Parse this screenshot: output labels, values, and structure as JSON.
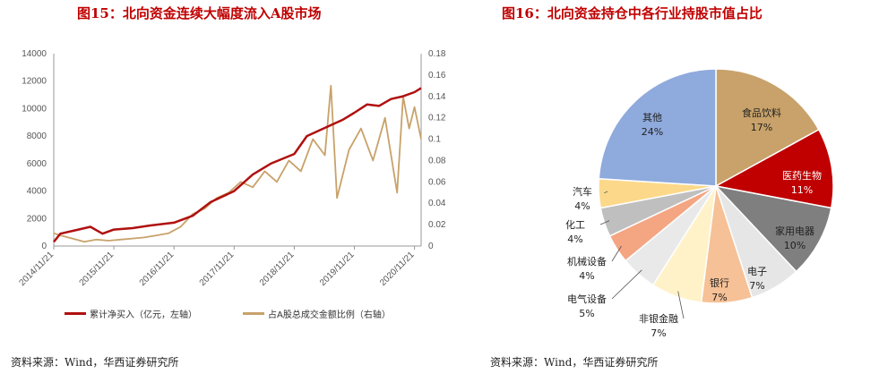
{
  "left_panel": {
    "title": "图15：北向资金连续大幅度流入A股市场",
    "source": "资料来源：Wind，华西证券研究所",
    "legend": {
      "red": "累计净买入（亿元，左轴）",
      "gold": "占A股总成交金额比例（右轴）"
    }
  },
  "right_panel": {
    "title": "图16：北向资金持仓中各行业持股市值占比",
    "source": "资料来源：Wind，华西证券研究所"
  },
  "colors": {
    "title": "#c00000",
    "red_line": "#b01010",
    "gold_line": "#c8a26a"
  },
  "chart_data": [
    {
      "type": "line",
      "title": "北向资金连续大幅度流入A股市场",
      "x_tick_labels": [
        "2014/11/21",
        "2015/11/21",
        "2016/11/21",
        "2017/11/21",
        "2018/11/21",
        "2019/11/21",
        "2020/11/21"
      ],
      "y_left": {
        "label": "",
        "ticks": [
          0,
          2000,
          4000,
          6000,
          8000,
          10000,
          12000,
          14000
        ],
        "lim": [
          0,
          14000
        ]
      },
      "y_right": {
        "label": "",
        "ticks": [
          0,
          0.02,
          0.04,
          0.06,
          0.08,
          0.1,
          0.12,
          0.14,
          0.16,
          0.18
        ],
        "lim": [
          0,
          0.18
        ]
      },
      "series": [
        {
          "name": "累计净买入（亿元，左轴）",
          "axis": "left",
          "color": "#b01010",
          "x": [
            2014.89,
            2015.0,
            2015.3,
            2015.5,
            2015.7,
            2015.89,
            2016.2,
            2016.5,
            2016.89,
            2017.2,
            2017.5,
            2017.89,
            2018.2,
            2018.5,
            2018.89,
            2019.1,
            2019.3,
            2019.5,
            2019.7,
            2019.89,
            2020.1,
            2020.3,
            2020.5,
            2020.7,
            2020.89,
            2021.0
          ],
          "values": [
            300,
            900,
            1200,
            1400,
            900,
            1200,
            1300,
            1500,
            1700,
            2200,
            3200,
            4000,
            5200,
            6000,
            6700,
            8000,
            8400,
            8800,
            9200,
            9700,
            10300,
            10200,
            10700,
            10900,
            11200,
            11500
          ]
        },
        {
          "name": "占A股总成交金额比例（右轴）",
          "axis": "right",
          "color": "#c8a26a",
          "x": [
            2014.89,
            2015.0,
            2015.2,
            2015.4,
            2015.6,
            2015.8,
            2016.0,
            2016.2,
            2016.4,
            2016.6,
            2016.8,
            2017.0,
            2017.2,
            2017.4,
            2017.6,
            2017.8,
            2018.0,
            2018.2,
            2018.4,
            2018.6,
            2018.8,
            2019.0,
            2019.2,
            2019.4,
            2019.5,
            2019.6,
            2019.8,
            2020.0,
            2020.2,
            2020.4,
            2020.6,
            2020.7,
            2020.8,
            2020.89,
            2021.0
          ],
          "values": [
            0.012,
            0.01,
            0.007,
            0.004,
            0.006,
            0.005,
            0.006,
            0.007,
            0.008,
            0.01,
            0.012,
            0.018,
            0.03,
            0.035,
            0.045,
            0.05,
            0.06,
            0.055,
            0.07,
            0.06,
            0.08,
            0.07,
            0.1,
            0.085,
            0.15,
            0.045,
            0.09,
            0.11,
            0.08,
            0.12,
            0.05,
            0.14,
            0.11,
            0.13,
            0.1
          ]
        }
      ]
    },
    {
      "type": "pie",
      "title": "北向资金持仓中各行业持股市值占比",
      "slices": [
        {
          "label": "食品饮料",
          "value": 17,
          "color": "#c8a26a"
        },
        {
          "label": "医药生物",
          "value": 11,
          "color": "#c00000"
        },
        {
          "label": "家用电器",
          "value": 10,
          "color": "#7f7f7f"
        },
        {
          "label": "电子",
          "value": 7,
          "color": "#e6e6e6"
        },
        {
          "label": "银行",
          "value": 7,
          "color": "#f6c196"
        },
        {
          "label": "非银金融",
          "value": 7,
          "color": "#fff2c8"
        },
        {
          "label": "电气设备",
          "value": 5,
          "color": "#e9e9e9"
        },
        {
          "label": "机械设备",
          "value": 4,
          "color": "#f4a582"
        },
        {
          "label": "化工",
          "value": 4,
          "color": "#bfbfbf"
        },
        {
          "label": "汽车",
          "value": 4,
          "color": "#fcd98a"
        },
        {
          "label": "其他",
          "value": 24,
          "color": "#8faadc"
        }
      ]
    }
  ]
}
